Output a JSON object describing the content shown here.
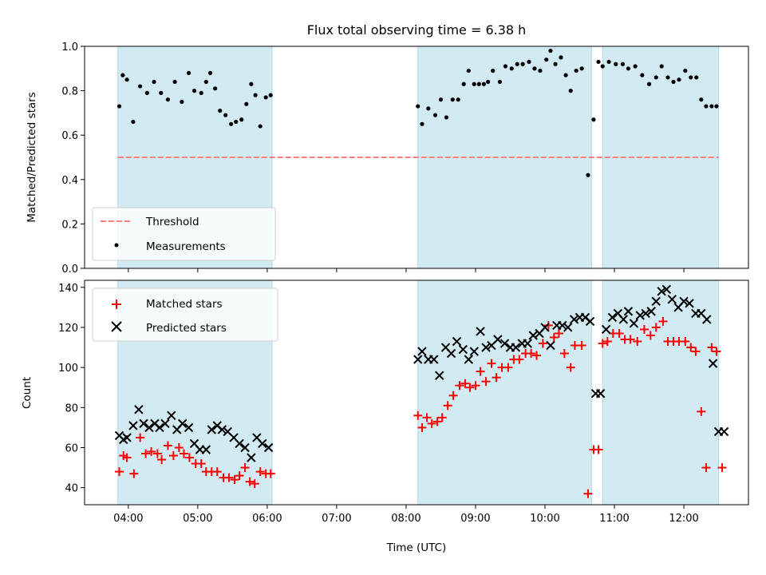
{
  "title": "Flux total observing time = 6.38 h",
  "xlabel": "Time (UTC)",
  "colors": {
    "shade": "#add8e6",
    "threshold": "#ff7f7f",
    "measurement": "#000000",
    "matched": "#ff0000",
    "predicted": "#000000"
  },
  "chart_data": [
    {
      "type": "scatter",
      "panel": "top",
      "ylabel": "Matched/Predicted stars",
      "xlim_hours": [
        3.37,
        12.93
      ],
      "ylim": [
        0,
        1.0
      ],
      "yticks": [
        "0.0",
        "0.2",
        "0.4",
        "0.6",
        "0.8",
        "1.0"
      ],
      "xticks": [
        "04:00",
        "05:00",
        "06:00",
        "07:00",
        "08:00",
        "09:00",
        "10:00",
        "11:00",
        "12:00"
      ],
      "threshold": 0.5,
      "shaded_intervals_hours": [
        [
          3.85,
          6.07
        ],
        [
          8.17,
          10.67
        ],
        [
          10.83,
          12.5
        ]
      ],
      "legend": [
        "Threshold",
        "Measurements"
      ],
      "legend_position": "lower-left",
      "series": [
        {
          "name": "Measurements",
          "x": [
            3.87,
            3.92,
            3.98,
            4.07,
            4.17,
            4.27,
            4.37,
            4.47,
            4.57,
            4.67,
            4.77,
            4.87,
            4.95,
            5.05,
            5.12,
            5.18,
            5.25,
            5.32,
            5.4,
            5.48,
            5.55,
            5.63,
            5.7,
            5.77,
            5.83,
            5.9,
            5.98,
            6.05,
            8.17,
            8.23,
            8.32,
            8.42,
            8.5,
            8.58,
            8.67,
            8.75,
            8.83,
            8.9,
            8.98,
            9.05,
            9.12,
            9.18,
            9.25,
            9.35,
            9.43,
            9.52,
            9.6,
            9.68,
            9.77,
            9.85,
            9.93,
            10.02,
            10.08,
            10.15,
            10.23,
            10.3,
            10.37,
            10.45,
            10.53,
            10.62,
            10.7,
            10.77,
            10.83,
            10.92,
            11.02,
            11.12,
            11.2,
            11.3,
            11.4,
            11.5,
            11.6,
            11.68,
            11.77,
            11.85,
            11.93,
            12.02,
            12.1,
            12.18,
            12.25,
            12.32,
            12.4,
            12.47
          ],
          "y": [
            0.73,
            0.87,
            0.85,
            0.66,
            0.82,
            0.79,
            0.84,
            0.79,
            0.76,
            0.84,
            0.75,
            0.88,
            0.8,
            0.79,
            0.84,
            0.88,
            0.81,
            0.71,
            0.69,
            0.65,
            0.66,
            0.67,
            0.74,
            0.83,
            0.78,
            0.64,
            0.77,
            0.78,
            0.73,
            0.65,
            0.72,
            0.69,
            0.76,
            0.68,
            0.76,
            0.76,
            0.83,
            0.89,
            0.83,
            0.83,
            0.83,
            0.84,
            0.89,
            0.84,
            0.91,
            0.9,
            0.92,
            0.92,
            0.93,
            0.9,
            0.89,
            0.94,
            0.98,
            0.92,
            0.95,
            0.87,
            0.8,
            0.89,
            0.9,
            0.42,
            0.67,
            0.93,
            0.91,
            0.93,
            0.92,
            0.92,
            0.9,
            0.91,
            0.87,
            0.83,
            0.86,
            0.91,
            0.86,
            0.84,
            0.85,
            0.89,
            0.86,
            0.86,
            0.76,
            0.73,
            0.73,
            0.73
          ]
        }
      ]
    },
    {
      "type": "scatter",
      "panel": "bottom",
      "ylabel": "Count",
      "xlim_hours": [
        3.37,
        12.93
      ],
      "ylim": [
        31.5,
        143.5
      ],
      "yticks": [
        "40",
        "60",
        "80",
        "100",
        "120",
        "140"
      ],
      "xticks": [
        "04:00",
        "05:00",
        "06:00",
        "07:00",
        "08:00",
        "09:00",
        "10:00",
        "11:00",
        "12:00"
      ],
      "shaded_intervals_hours": [
        [
          3.85,
          6.07
        ],
        [
          8.17,
          10.67
        ],
        [
          10.83,
          12.5
        ]
      ],
      "legend": [
        "Matched stars",
        "Predicted stars"
      ],
      "legend_position": "upper-left",
      "series": [
        {
          "name": "Matched stars",
          "x": [
            3.87,
            3.93,
            3.98,
            4.08,
            4.17,
            4.25,
            4.33,
            4.42,
            4.48,
            4.57,
            4.65,
            4.73,
            4.8,
            4.88,
            4.97,
            5.05,
            5.12,
            5.2,
            5.28,
            5.37,
            5.45,
            5.53,
            5.6,
            5.68,
            5.75,
            5.82,
            5.9,
            5.98,
            6.05,
            8.17,
            8.23,
            8.3,
            8.37,
            8.45,
            8.52,
            8.6,
            8.68,
            8.77,
            8.85,
            8.92,
            9.0,
            9.07,
            9.15,
            9.23,
            9.3,
            9.38,
            9.47,
            9.55,
            9.63,
            9.72,
            9.8,
            9.88,
            9.97,
            10.05,
            10.13,
            10.2,
            10.28,
            10.37,
            10.43,
            10.53,
            10.62,
            10.7,
            10.77,
            10.83,
            10.9,
            10.98,
            11.07,
            11.15,
            11.23,
            11.33,
            11.43,
            11.52,
            11.6,
            11.7,
            11.77,
            11.85,
            11.93,
            12.02,
            12.1,
            12.17,
            12.25,
            12.32,
            12.4,
            12.47,
            12.55
          ],
          "y": [
            48,
            56,
            55,
            47,
            65,
            57,
            58,
            57,
            54,
            61,
            56,
            60,
            57,
            55,
            52,
            52,
            48,
            48,
            48,
            45,
            45,
            44,
            46,
            50,
            43,
            42,
            48,
            47,
            47,
            76,
            70,
            75,
            72,
            73,
            75,
            81,
            86,
            91,
            92,
            90,
            91,
            98,
            93,
            102,
            95,
            100,
            100,
            104,
            104,
            107,
            107,
            106,
            112,
            121,
            115,
            117,
            107,
            100,
            111,
            111,
            37,
            59,
            59,
            112,
            113,
            117,
            117,
            114,
            114,
            113,
            119,
            116,
            120,
            123,
            113,
            113,
            113,
            113,
            110,
            108,
            78,
            50,
            110,
            108,
            50
          ]
        },
        {
          "name": "Predicted stars",
          "x": [
            3.87,
            3.93,
            3.98,
            4.07,
            4.15,
            4.22,
            4.3,
            4.38,
            4.45,
            4.53,
            4.62,
            4.7,
            4.78,
            4.87,
            4.95,
            5.03,
            5.12,
            5.2,
            5.28,
            5.35,
            5.43,
            5.52,
            5.6,
            5.68,
            5.77,
            5.85,
            5.93,
            6.02,
            8.17,
            8.23,
            8.32,
            8.4,
            8.48,
            8.57,
            8.65,
            8.73,
            8.82,
            8.9,
            8.98,
            9.07,
            9.15,
            9.23,
            9.32,
            9.42,
            9.5,
            9.58,
            9.67,
            9.75,
            9.83,
            9.92,
            10.0,
            10.08,
            10.17,
            10.25,
            10.33,
            10.42,
            10.5,
            10.58,
            10.65,
            10.73,
            10.8,
            10.88,
            10.97,
            11.05,
            11.13,
            11.2,
            11.28,
            11.37,
            11.45,
            11.53,
            11.6,
            11.68,
            11.75,
            11.83,
            11.92,
            12.0,
            12.08,
            12.17,
            12.25,
            12.33,
            12.42,
            12.5,
            12.58
          ],
          "y": [
            66,
            64,
            65,
            71,
            79,
            72,
            70,
            72,
            70,
            72,
            76,
            69,
            72,
            70,
            62,
            59,
            59,
            69,
            71,
            69,
            68,
            65,
            62,
            60,
            55,
            65,
            62,
            60,
            104,
            108,
            104,
            104,
            96,
            110,
            107,
            113,
            109,
            104,
            108,
            118,
            110,
            111,
            114,
            112,
            110,
            110,
            112,
            112,
            116,
            117,
            120,
            111,
            121,
            121,
            120,
            124,
            125,
            125,
            123,
            87,
            87,
            119,
            125,
            127,
            124,
            128,
            122,
            126,
            127,
            128,
            133,
            138,
            139,
            134,
            130,
            133,
            132,
            127,
            127,
            124,
            102,
            68,
            68
          ]
        }
      ]
    }
  ]
}
